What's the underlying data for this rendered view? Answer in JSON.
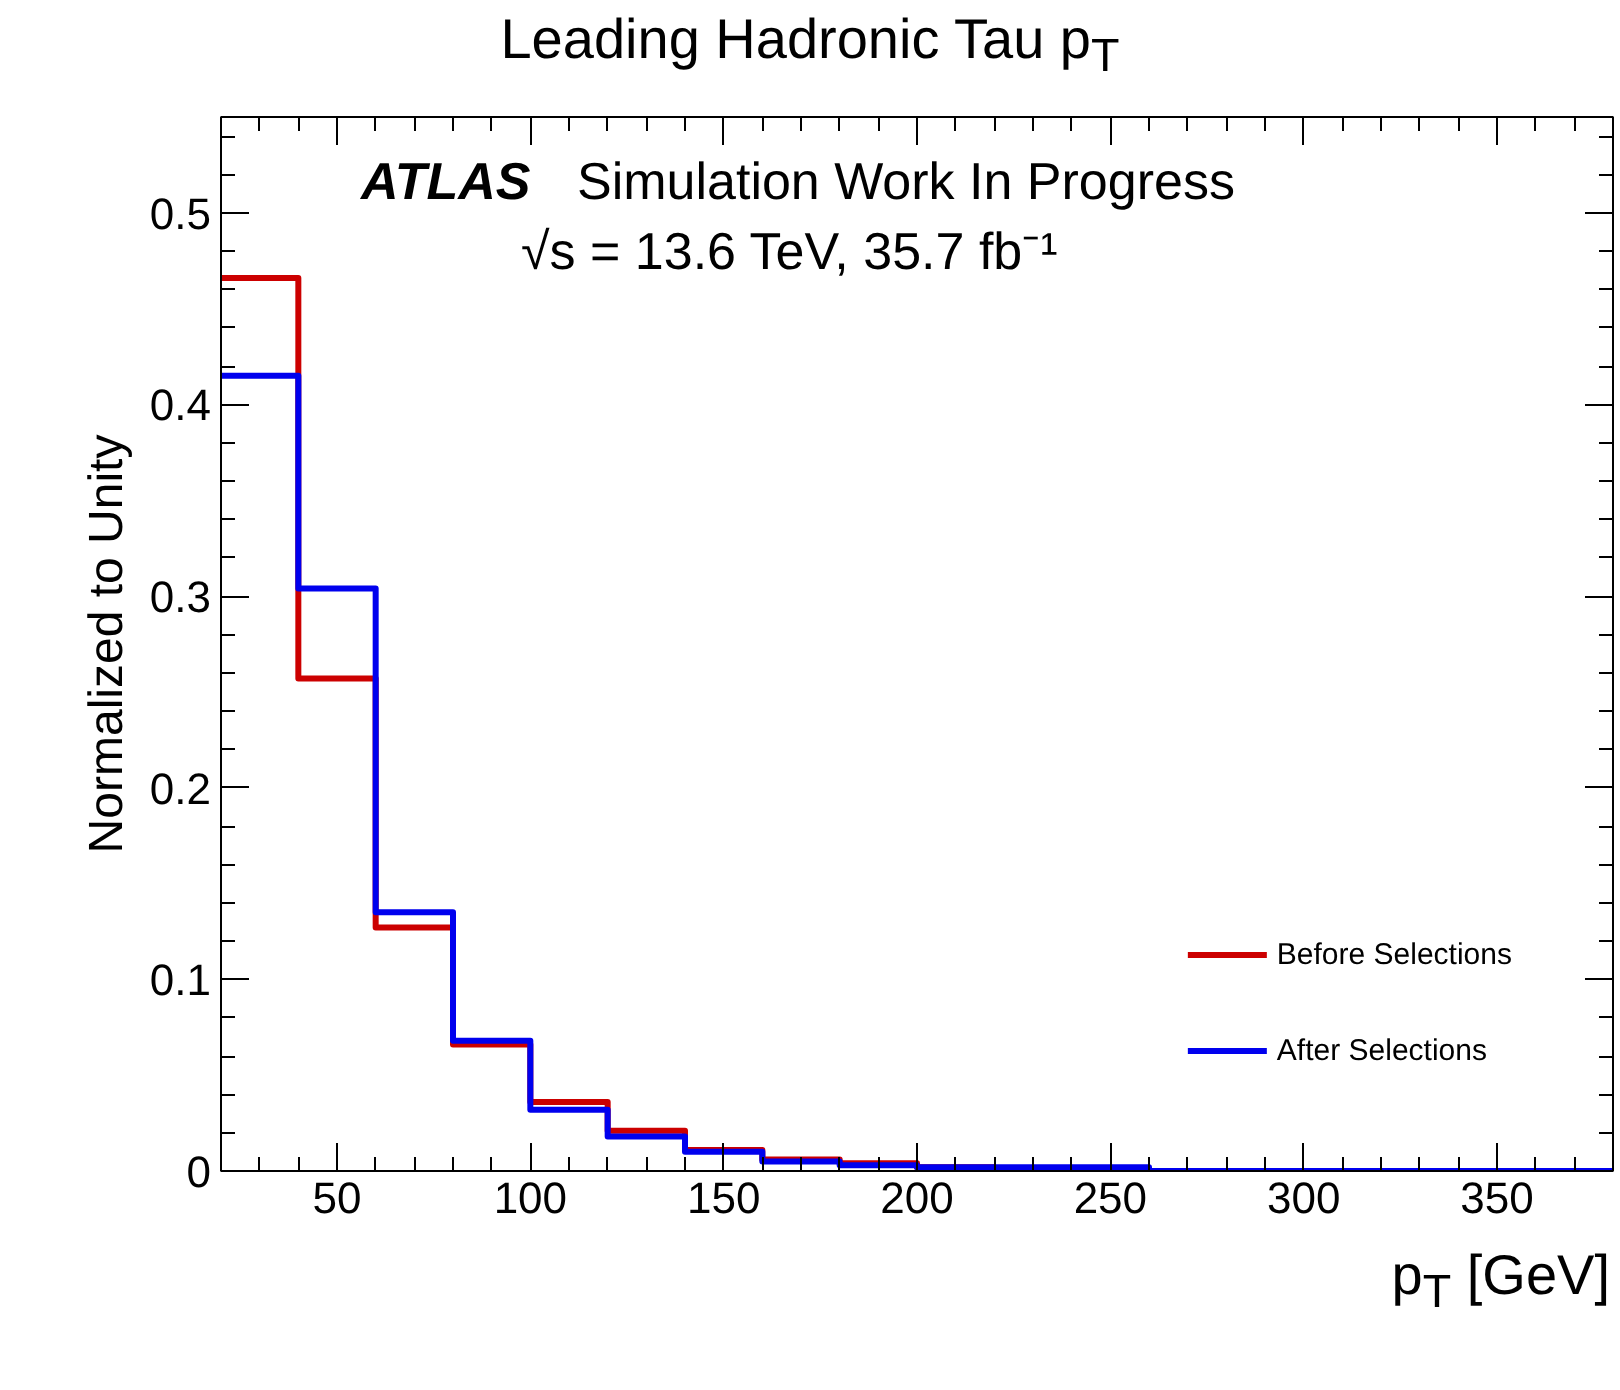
{
  "chart_data": {
    "type": "histogram",
    "title": "Leading Hadronic Tau p$_{T}$",
    "xlabel": "p$_{T}$ [GeV]",
    "ylabel": "Normalized to Unity",
    "annotations": [
      "ATLAS",
      "Simulation Work In Progress",
      "√s = 13.6 TeV, 35.7 fb⁻¹"
    ],
    "bins": [
      20,
      40,
      60,
      80,
      100,
      120,
      140,
      160,
      180,
      200,
      220,
      240,
      260,
      280,
      300,
      320,
      340,
      360,
      380
    ],
    "series": [
      {
        "name": "Before Selections",
        "color": "#cc0000",
        "values": [
          0.466,
          0.257,
          0.127,
          0.066,
          0.036,
          0.021,
          0.011,
          0.006,
          0.004,
          0.002,
          0.001,
          0,
          0,
          0,
          0,
          0,
          0,
          0
        ]
      },
      {
        "name": "After Selections",
        "color": "#0000ee",
        "values": [
          0.415,
          0.304,
          0.135,
          0.068,
          0.032,
          0.018,
          0.01,
          0.005,
          0.003,
          0.002,
          0.002,
          0.002,
          0,
          0,
          0,
          0,
          0,
          0
        ]
      }
    ],
    "xlim": [
      20,
      380
    ],
    "ylim": [
      0,
      0.55
    ],
    "xticks": [
      50,
      100,
      150,
      200,
      250,
      300,
      350
    ],
    "yticks": [
      0,
      0.1,
      0.2,
      0.3,
      0.4,
      0.5
    ],
    "grid": false,
    "legend": "bottom right"
  }
}
